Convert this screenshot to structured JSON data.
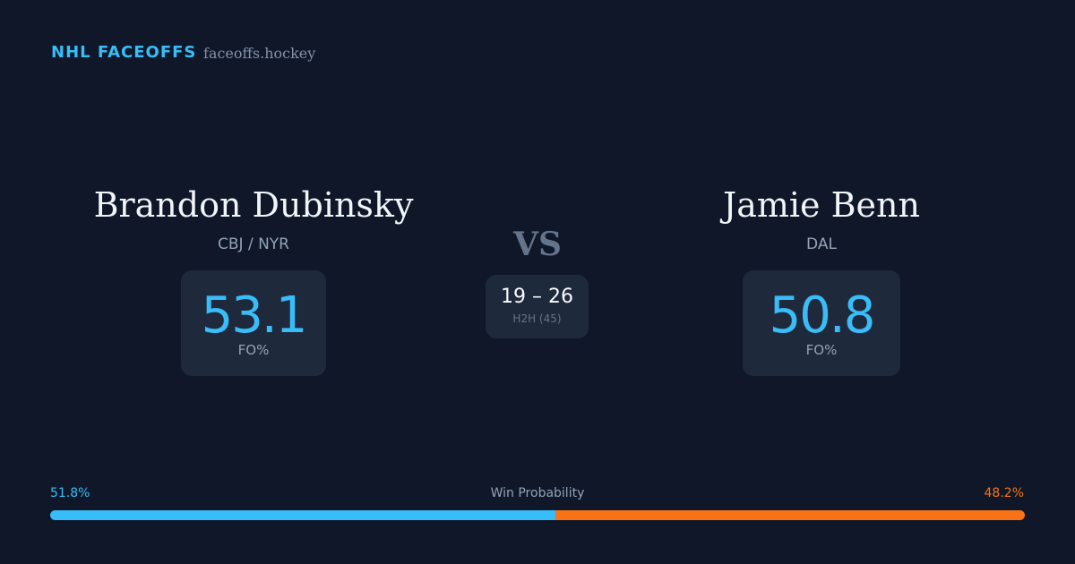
{
  "header": {
    "title": "NHL FACEOFFS",
    "site": "faceoffs.hockey"
  },
  "players": [
    {
      "name": "Brandon Dubinsky",
      "team": "CBJ / NYR",
      "stat": "53.1",
      "stat_label": "FO%"
    },
    {
      "name": "Jamie Benn",
      "team": "DAL",
      "stat": "50.8",
      "stat_label": "FO%"
    }
  ],
  "versus": "VS",
  "h2h": {
    "score": "19 – 26",
    "label": "H2H (45)"
  },
  "win_probability": {
    "title": "Win Probability",
    "segments": [
      {
        "value": 51.8,
        "label": "51.8%",
        "color": "#38bdf8"
      },
      {
        "value": 48.2,
        "label": "48.2%",
        "color": "#f97316"
      }
    ]
  }
}
